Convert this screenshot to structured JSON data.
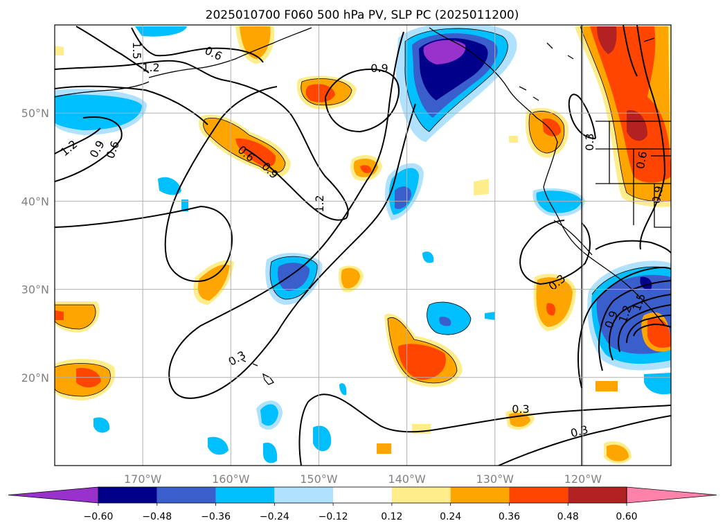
{
  "title": "2025010700 F060 500 hPa PV, SLP PC (2025011200)",
  "map": {
    "lon_range": [
      -180,
      -110
    ],
    "lat_range": [
      10,
      60
    ],
    "lat_ticks": [
      {
        "value": 50,
        "label": "50°N"
      },
      {
        "value": 40,
        "label": "40°N"
      },
      {
        "value": 30,
        "label": "30°N"
      },
      {
        "value": 20,
        "label": "20°N"
      }
    ],
    "lon_ticks": [
      {
        "value": -170,
        "label": "170°W"
      },
      {
        "value": -160,
        "label": "160°W"
      },
      {
        "value": -150,
        "label": "150°W"
      },
      {
        "value": -140,
        "label": "140°W"
      },
      {
        "value": -130,
        "label": "130°W"
      },
      {
        "value": -120,
        "label": "120°W"
      }
    ],
    "grid": true
  },
  "colorbar": {
    "ticks": [
      "−0.60",
      "−0.48",
      "−0.36",
      "−0.24",
      "−0.12",
      "0.12",
      "0.24",
      "0.36",
      "0.48",
      "0.60"
    ],
    "colors": [
      "#9932cc",
      "#00008b",
      "#3a5fcd",
      "#00bfff",
      "#b0e2ff",
      "#ffffff",
      "#ffec8b",
      "#ffa500",
      "#ff4500",
      "#b22222",
      "#ff82ab"
    ]
  },
  "contour_labels": [
    "0.9",
    "0.6",
    "1.2",
    "1.5",
    "0.9",
    "0.6",
    "1.2",
    "0.6",
    "0.9",
    "1.2",
    "0.3",
    "0.3",
    "0.9",
    "0.6",
    "0.3",
    "0.3",
    "0.3",
    "0.9",
    "1.2",
    "1.5"
  ],
  "colors": {
    "grid": "#b0b0b0",
    "contour": "#000000",
    "coast": "#000000"
  }
}
